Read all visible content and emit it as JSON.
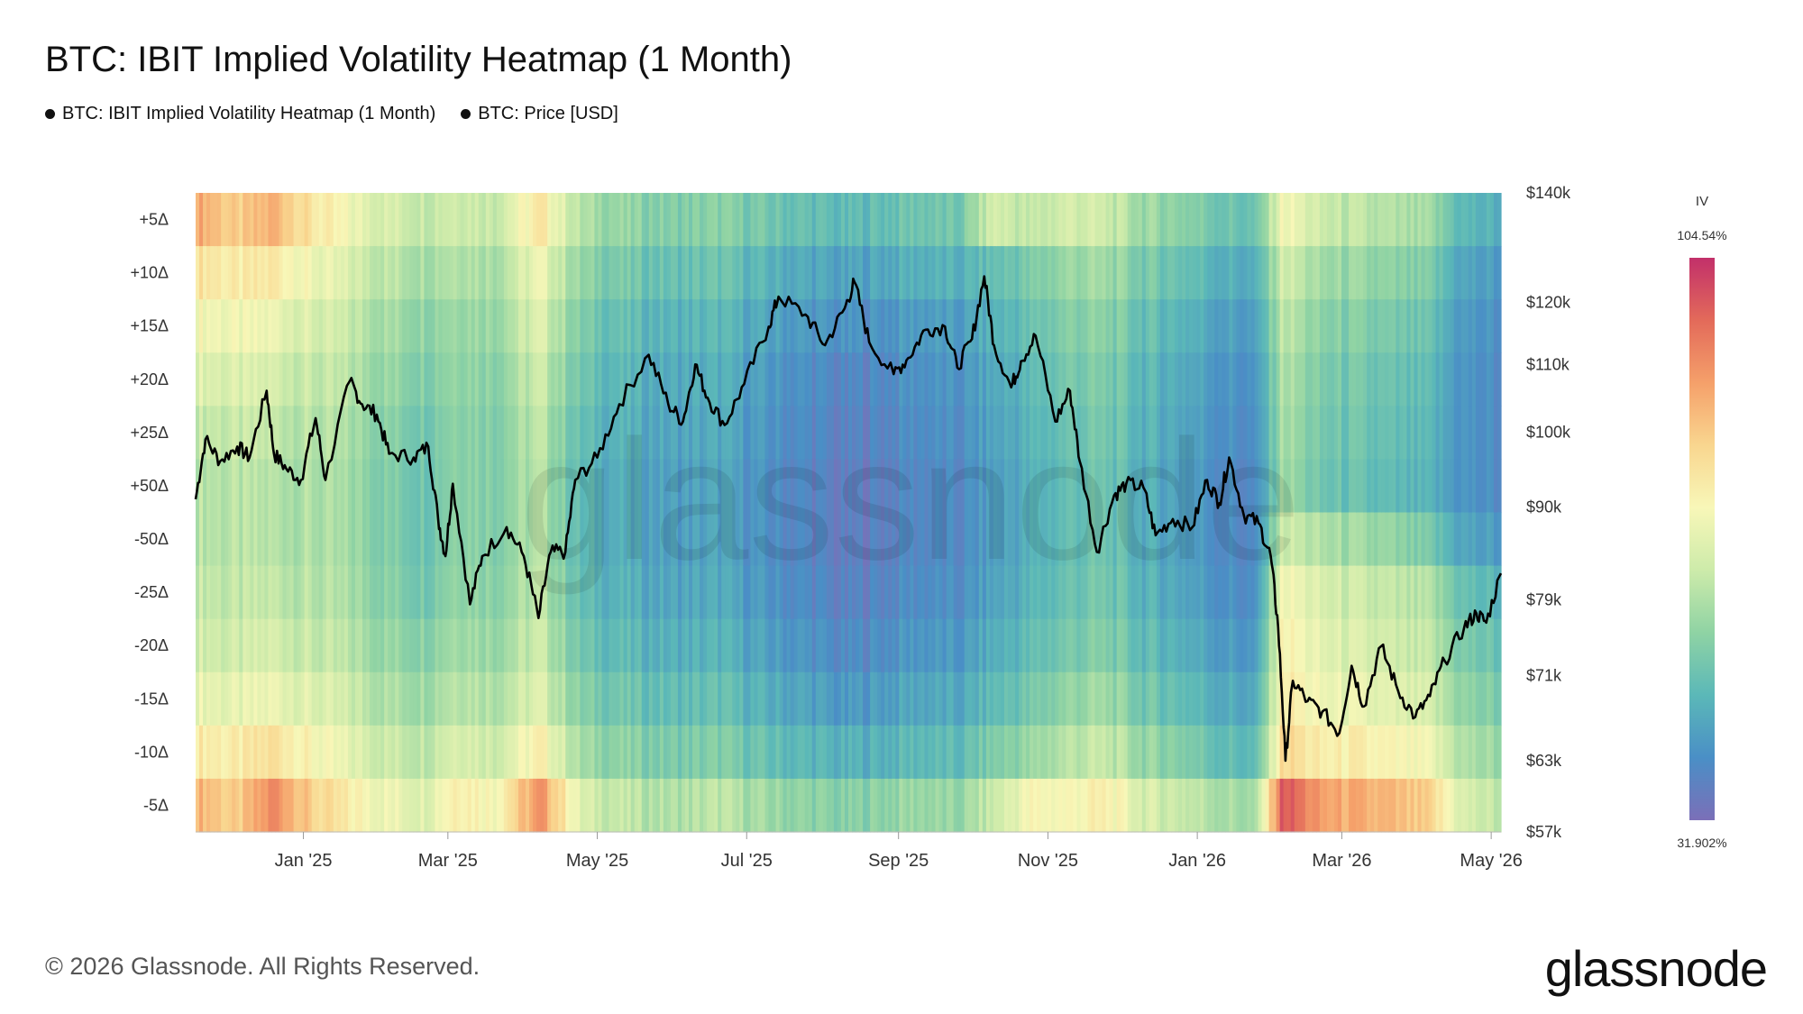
{
  "title": "BTC: IBIT Implied Volatility Heatmap (1 Month)",
  "legend": [
    {
      "label": "BTC: IBIT Implied Volatility Heatmap (1 Month)",
      "color": "#111111"
    },
    {
      "label": "BTC: Price [USD]",
      "color": "#111111"
    }
  ],
  "footer": "© 2026 Glassnode. All Rights Reserved.",
  "brand": "glassnode",
  "watermark": "glassnode",
  "chart_data": {
    "type": "heatmap",
    "title": "BTC: IBIT Implied Volatility Heatmap (1 Month)",
    "x_tick_labels": [
      "Jan '25",
      "Mar '25",
      "May '25",
      "Jul '25",
      "Sep '25",
      "Nov '25",
      "Jan '26",
      "Mar '26",
      "May '26"
    ],
    "x_tick_dates": [
      "2025-01-01",
      "2025-03-01",
      "2025-05-01",
      "2025-07-01",
      "2025-09-01",
      "2025-11-01",
      "2026-01-01",
      "2026-03-01",
      "2026-05-01"
    ],
    "x_range": [
      "2024-11-18",
      "2026-05-05"
    ],
    "heatmap_rows": [
      "+5Δ",
      "+10Δ",
      "+15Δ",
      "+20Δ",
      "+25Δ",
      "+50Δ",
      "-50Δ",
      "-25Δ",
      "-20Δ",
      "-15Δ",
      "-10Δ",
      "-5Δ"
    ],
    "colorbar": {
      "label": "IV",
      "max_label": "104.54%",
      "min_label": "31.902%",
      "max": 104.54,
      "min": 31.902,
      "colors": [
        "#7b6fb8",
        "#4a8fc6",
        "#5bb8b8",
        "#8fd3a4",
        "#cdebaa",
        "#f8f7b8",
        "#f9d68f",
        "#f5a06a",
        "#e36a5a",
        "#c2306a"
      ]
    },
    "right_axis": {
      "label": "BTC: Price [USD]",
      "scale": "log",
      "tick_labels": [
        "$140k",
        "$120k",
        "$110k",
        "$100k",
        "$90k",
        "$79k",
        "$71k",
        "$63k",
        "$57k"
      ],
      "tick_values": [
        140000,
        120000,
        110000,
        100000,
        90000,
        79000,
        71000,
        63000,
        57000
      ],
      "ylim": [
        57000,
        140000
      ]
    },
    "iv_columns": [
      {
        "date": "2024-11-18",
        "iv": [
          88,
          78,
          72,
          68,
          64,
          62,
          62,
          64,
          66,
          70,
          76,
          86
        ]
      },
      {
        "date": "2024-12-05",
        "iv": [
          80,
          74,
          70,
          66,
          63,
          61,
          61,
          62,
          64,
          68,
          74,
          80
        ]
      },
      {
        "date": "2024-12-20",
        "iv": [
          86,
          76,
          70,
          66,
          63,
          61,
          61,
          63,
          66,
          70,
          78,
          92
        ]
      },
      {
        "date": "2025-01-05",
        "iv": [
          76,
          70,
          66,
          63,
          61,
          60,
          60,
          61,
          63,
          67,
          72,
          80
        ]
      },
      {
        "date": "2025-01-20",
        "iv": [
          70,
          66,
          63,
          61,
          59,
          58,
          58,
          59,
          61,
          64,
          68,
          74
        ]
      },
      {
        "date": "2025-02-05",
        "iv": [
          66,
          62,
          59,
          57,
          55,
          54,
          54,
          55,
          57,
          60,
          64,
          70
        ]
      },
      {
        "date": "2025-02-20",
        "iv": [
          64,
          60,
          57,
          55,
          53,
          52,
          52,
          53,
          56,
          59,
          63,
          68
        ]
      },
      {
        "date": "2025-03-05",
        "iv": [
          66,
          62,
          59,
          58,
          57,
          57,
          57,
          58,
          60,
          63,
          68,
          76
        ]
      },
      {
        "date": "2025-03-20",
        "iv": [
          64,
          60,
          58,
          56,
          55,
          55,
          55,
          56,
          58,
          61,
          65,
          72
        ]
      },
      {
        "date": "2025-04-08",
        "iv": [
          76,
          70,
          67,
          64,
          62,
          61,
          61,
          62,
          64,
          67,
          74,
          90
        ]
      },
      {
        "date": "2025-04-25",
        "iv": [
          60,
          56,
          53,
          51,
          49,
          48,
          48,
          49,
          51,
          54,
          58,
          66
        ]
      },
      {
        "date": "2025-05-15",
        "iv": [
          56,
          52,
          49,
          47,
          46,
          45,
          45,
          46,
          48,
          51,
          55,
          62
        ]
      },
      {
        "date": "2025-06-01",
        "iv": [
          54,
          50,
          47,
          45,
          44,
          43,
          43,
          44,
          46,
          49,
          53,
          60
        ]
      },
      {
        "date": "2025-06-20",
        "iv": [
          55,
          51,
          48,
          46,
          45,
          44,
          44,
          45,
          47,
          50,
          54,
          62
        ]
      },
      {
        "date": "2025-07-08",
        "iv": [
          52,
          47,
          44,
          42,
          41,
          40,
          40,
          41,
          43,
          46,
          50,
          58
        ]
      },
      {
        "date": "2025-07-25",
        "iv": [
          50,
          45,
          42,
          40,
          39,
          38,
          38,
          39,
          41,
          44,
          48,
          56
        ]
      },
      {
        "date": "2025-08-10",
        "iv": [
          48,
          43,
          40,
          37,
          36,
          35,
          35,
          36,
          38,
          41,
          46,
          54
        ]
      },
      {
        "date": "2025-08-25",
        "iv": [
          50,
          45,
          41,
          39,
          38,
          37,
          37,
          38,
          40,
          43,
          47,
          56
        ]
      },
      {
        "date": "2025-09-10",
        "iv": [
          52,
          47,
          43,
          41,
          40,
          39,
          39,
          40,
          42,
          45,
          49,
          58
        ]
      },
      {
        "date": "2025-09-25",
        "iv": [
          51,
          46,
          42,
          40,
          39,
          38,
          38,
          39,
          41,
          44,
          48,
          56
        ]
      },
      {
        "date": "2025-10-10",
        "iv": [
          66,
          50,
          47,
          45,
          44,
          43,
          43,
          44,
          46,
          49,
          54,
          64
        ]
      },
      {
        "date": "2025-10-25",
        "iv": [
          62,
          53,
          50,
          48,
          47,
          46,
          46,
          47,
          49,
          52,
          57,
          72
        ]
      },
      {
        "date": "2025-11-10",
        "iv": [
          66,
          58,
          55,
          53,
          51,
          50,
          50,
          51,
          53,
          57,
          62,
          72
        ]
      },
      {
        "date": "2025-11-25",
        "iv": [
          64,
          58,
          55,
          53,
          52,
          51,
          51,
          52,
          54,
          58,
          63,
          74
        ]
      },
      {
        "date": "2025-12-10",
        "iv": [
          58,
          53,
          50,
          48,
          47,
          46,
          46,
          47,
          49,
          52,
          57,
          66
        ]
      },
      {
        "date": "2025-12-25",
        "iv": [
          56,
          51,
          48,
          46,
          45,
          44,
          44,
          45,
          47,
          50,
          55,
          64
        ]
      },
      {
        "date": "2026-01-10",
        "iv": [
          52,
          47,
          44,
          42,
          41,
          40,
          40,
          41,
          43,
          46,
          50,
          60
        ]
      },
      {
        "date": "2026-01-25",
        "iv": [
          50,
          45,
          42,
          40,
          39,
          38,
          38,
          39,
          41,
          44,
          48,
          58
        ]
      },
      {
        "date": "2026-02-05",
        "iv": [
          72,
          66,
          63,
          61,
          60,
          59,
          65,
          72,
          74,
          76,
          80,
          100
        ]
      },
      {
        "date": "2026-02-20",
        "iv": [
          64,
          58,
          55,
          53,
          52,
          51,
          60,
          66,
          68,
          70,
          74,
          88
        ]
      },
      {
        "date": "2026-03-05",
        "iv": [
          62,
          57,
          54,
          52,
          51,
          50,
          58,
          64,
          66,
          69,
          74,
          86
        ]
      },
      {
        "date": "2026-03-20",
        "iv": [
          60,
          55,
          52,
          50,
          49,
          48,
          56,
          62,
          64,
          67,
          72,
          84
        ]
      },
      {
        "date": "2026-04-05",
        "iv": [
          58,
          53,
          50,
          48,
          47,
          46,
          52,
          60,
          62,
          65,
          70,
          80
        ]
      },
      {
        "date": "2026-04-20",
        "iv": [
          48,
          44,
          42,
          41,
          41,
          41,
          44,
          50,
          53,
          56,
          60,
          66
        ]
      },
      {
        "date": "2026-05-05",
        "iv": [
          46,
          42,
          40,
          39,
          39,
          39,
          42,
          47,
          50,
          53,
          57,
          62
        ]
      }
    ],
    "price_series": {
      "name": "BTC: Price [USD]",
      "points": [
        [
          "2024-11-18",
          91000
        ],
        [
          "2024-11-22",
          99000
        ],
        [
          "2024-11-28",
          96000
        ],
        [
          "2024-12-05",
          98000
        ],
        [
          "2024-12-10",
          96500
        ],
        [
          "2024-12-17",
          106000
        ],
        [
          "2024-12-20",
          97000
        ],
        [
          "2024-12-25",
          95000
        ],
        [
          "2024-12-31",
          93500
        ],
        [
          "2025-01-06",
          102000
        ],
        [
          "2025-01-10",
          93500
        ],
        [
          "2025-01-20",
          107500
        ],
        [
          "2025-01-25",
          104000
        ],
        [
          "2025-01-31",
          102500
        ],
        [
          "2025-02-05",
          97000
        ],
        [
          "2025-02-15",
          96500
        ],
        [
          "2025-02-21",
          98000
        ],
        [
          "2025-02-25",
          88500
        ],
        [
          "2025-02-28",
          84000
        ],
        [
          "2025-03-03",
          93000
        ],
        [
          "2025-03-10",
          78500
        ],
        [
          "2025-03-15",
          84000
        ],
        [
          "2025-03-25",
          87500
        ],
        [
          "2025-04-01",
          84000
        ],
        [
          "2025-04-07",
          77000
        ],
        [
          "2025-04-12",
          84500
        ],
        [
          "2025-04-18",
          84500
        ],
        [
          "2025-04-22",
          93500
        ],
        [
          "2025-05-01",
          96500
        ],
        [
          "2025-05-10",
          104000
        ],
        [
          "2025-05-22",
          111500
        ],
        [
          "2025-05-30",
          104000
        ],
        [
          "2025-06-05",
          101500
        ],
        [
          "2025-06-10",
          110000
        ],
        [
          "2025-06-15",
          105000
        ],
        [
          "2025-06-22",
          101000
        ],
        [
          "2025-06-30",
          107000
        ],
        [
          "2025-07-10",
          116000
        ],
        [
          "2025-07-14",
          121000
        ],
        [
          "2025-07-25",
          118000
        ],
        [
          "2025-08-02",
          113000
        ],
        [
          "2025-08-10",
          119000
        ],
        [
          "2025-08-14",
          123500
        ],
        [
          "2025-08-20",
          113500
        ],
        [
          "2025-08-30",
          108500
        ],
        [
          "2025-09-05",
          111000
        ],
        [
          "2025-09-12",
          115500
        ],
        [
          "2025-09-20",
          116000
        ],
        [
          "2025-09-25",
          109500
        ],
        [
          "2025-10-01",
          114000
        ],
        [
          "2025-10-06",
          124500
        ],
        [
          "2025-10-10",
          113000
        ],
        [
          "2025-10-17",
          106500
        ],
        [
          "2025-10-21",
          110500
        ],
        [
          "2025-10-27",
          114500
        ],
        [
          "2025-11-04",
          101500
        ],
        [
          "2025-11-10",
          106000
        ],
        [
          "2025-11-14",
          96000
        ],
        [
          "2025-11-21",
          84500
        ],
        [
          "2025-11-28",
          91500
        ],
        [
          "2025-12-03",
          93000
        ],
        [
          "2025-12-10",
          92500
        ],
        [
          "2025-12-15",
          86500
        ],
        [
          "2025-12-22",
          88500
        ],
        [
          "2025-12-30",
          87500
        ],
        [
          "2026-01-05",
          93500
        ],
        [
          "2026-01-10",
          90500
        ],
        [
          "2026-01-14",
          96500
        ],
        [
          "2026-01-20",
          89000
        ],
        [
          "2026-01-26",
          88000
        ],
        [
          "2026-01-31",
          84000
        ],
        [
          "2026-02-03",
          76000
        ],
        [
          "2026-02-06",
          63000
        ],
        [
          "2026-02-09",
          70500
        ],
        [
          "2026-02-15",
          68500
        ],
        [
          "2026-02-21",
          67500
        ],
        [
          "2026-02-28",
          65500
        ],
        [
          "2026-03-05",
          72000
        ],
        [
          "2026-03-10",
          68000
        ],
        [
          "2026-03-17",
          74000
        ],
        [
          "2026-03-24",
          69500
        ],
        [
          "2026-03-31",
          67000
        ],
        [
          "2026-04-06",
          69000
        ],
        [
          "2026-04-12",
          72500
        ],
        [
          "2026-04-20",
          76000
        ],
        [
          "2026-04-25",
          77500
        ],
        [
          "2026-04-29",
          76500
        ],
        [
          "2026-05-05",
          82000
        ]
      ]
    }
  }
}
